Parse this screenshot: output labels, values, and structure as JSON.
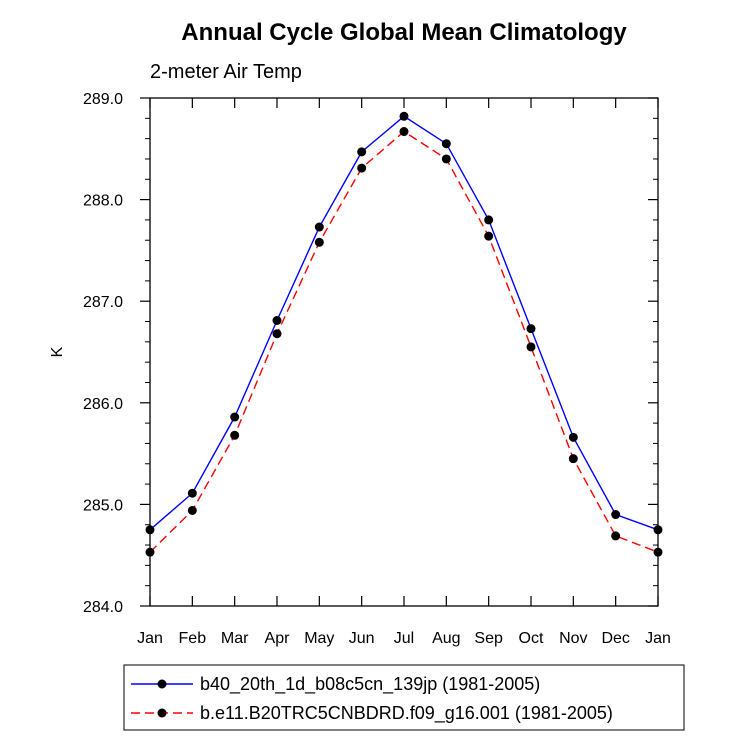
{
  "chart_data": {
    "type": "line",
    "title": "Annual Cycle Global Mean Climatology",
    "subtitle": "2-meter Air Temp",
    "xlabel": "",
    "ylabel": "K",
    "categories": [
      "Jan",
      "Feb",
      "Mar",
      "Apr",
      "May",
      "Jun",
      "Jul",
      "Aug",
      "Sep",
      "Oct",
      "Nov",
      "Dec",
      "Jan"
    ],
    "ylim": [
      284.0,
      289.0
    ],
    "y_ticks": [
      "284.0",
      "285.0",
      "286.0",
      "287.0",
      "288.0",
      "289.0"
    ],
    "grid": false,
    "legend_position": "bottom",
    "series": [
      {
        "name": "b40_20th_1d_b08c5cn_139jp (1981-2005)",
        "color": "#0000ff",
        "line_style": "solid",
        "marker": "filled-circle",
        "values": [
          284.75,
          285.11,
          285.86,
          286.81,
          287.73,
          288.47,
          288.82,
          288.55,
          287.8,
          286.73,
          285.66,
          284.9,
          284.75
        ]
      },
      {
        "name": "b.e11.B20TRC5CNBDRD.f09_g16.001 (1981-2005)",
        "color": "#ff0000",
        "line_style": "dashed",
        "marker": "filled-circle",
        "values": [
          284.53,
          284.94,
          285.68,
          286.68,
          287.58,
          288.31,
          288.67,
          288.4,
          287.64,
          286.55,
          285.45,
          284.69,
          284.53
        ]
      }
    ]
  }
}
